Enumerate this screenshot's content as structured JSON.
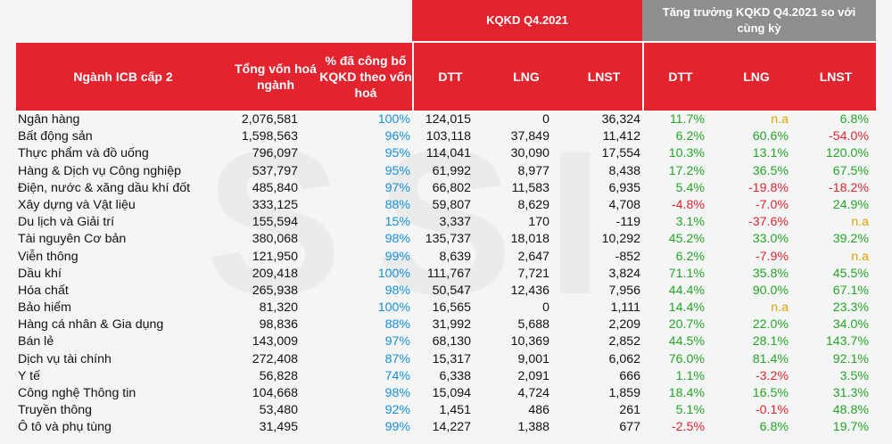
{
  "watermark": "SSI",
  "header": {
    "kqkd": "KQKD Q4.2021",
    "growth": "Tăng trưởng KQKD Q4.2021 so với cùng kỳ",
    "industry": "Ngành ICB cấp 2",
    "market_cap": "Tổng vốn hoá ngành",
    "pct_reported": "% đã công bố KQKD theo vốn hoá",
    "dtt": "DTT",
    "lng": "LNG",
    "lnst": "LNST",
    "g_dtt": "DTT",
    "g_lng": "LNG",
    "g_lnst": "LNST"
  },
  "colors": {
    "header_red": "#e3242f",
    "header_gray": "#8e8e8e",
    "positive": "#26a626",
    "negative": "#e3242f",
    "na": "#e3a300",
    "percent_blue": "#1a8fd8"
  },
  "rows": [
    {
      "name": "Ngân hàng",
      "cap": "2,076,581",
      "pct": "100%",
      "dtt": "124,015",
      "lng": "0",
      "lnst": "36,324",
      "g_dtt": "11.7%",
      "g_lng": "n.a",
      "g_lnst": "6.8%"
    },
    {
      "name": "Bất động sản",
      "cap": "1,598,563",
      "pct": "96%",
      "dtt": "103,118",
      "lng": "37,849",
      "lnst": "11,412",
      "g_dtt": "6.2%",
      "g_lng": "60.6%",
      "g_lnst": "-54.0%"
    },
    {
      "name": "Thực phẩm và đồ uống",
      "cap": "796,097",
      "pct": "95%",
      "dtt": "114,041",
      "lng": "30,090",
      "lnst": "17,554",
      "g_dtt": "10.3%",
      "g_lng": "13.1%",
      "g_lnst": "120.0%"
    },
    {
      "name": "Hàng & Dịch vụ Công nghiệp",
      "cap": "537,797",
      "pct": "95%",
      "dtt": "61,992",
      "lng": "8,977",
      "lnst": "8,438",
      "g_dtt": "17.2%",
      "g_lng": "36.5%",
      "g_lnst": "67.5%"
    },
    {
      "name": "Điện, nước & xăng dầu khí đốt",
      "cap": "485,840",
      "pct": "97%",
      "dtt": "66,802",
      "lng": "11,583",
      "lnst": "6,935",
      "g_dtt": "5.4%",
      "g_lng": "-19.8%",
      "g_lnst": "-18.2%"
    },
    {
      "name": "Xây dựng và Vật liệu",
      "cap": "333,125",
      "pct": "88%",
      "dtt": "59,807",
      "lng": "8,629",
      "lnst": "4,708",
      "g_dtt": "-4.8%",
      "g_lng": "-7.0%",
      "g_lnst": "24.9%"
    },
    {
      "name": "Du lịch và Giải trí",
      "cap": "155,594",
      "pct": "15%",
      "dtt": "3,337",
      "lng": "170",
      "lnst": "-119",
      "g_dtt": "3.1%",
      "g_lng": "-37.6%",
      "g_lnst": "n.a"
    },
    {
      "name": "Tài nguyên Cơ bản",
      "cap": "380,068",
      "pct": "98%",
      "dtt": "135,737",
      "lng": "18,018",
      "lnst": "10,292",
      "g_dtt": "45.2%",
      "g_lng": "33.0%",
      "g_lnst": "39.2%"
    },
    {
      "name": "Viễn thông",
      "cap": "121,950",
      "pct": "99%",
      "dtt": "8,639",
      "lng": "2,647",
      "lnst": "-852",
      "g_dtt": "6.2%",
      "g_lng": "-7.9%",
      "g_lnst": "n.a"
    },
    {
      "name": "Dầu khí",
      "cap": "209,418",
      "pct": "100%",
      "dtt": "111,767",
      "lng": "7,721",
      "lnst": "3,824",
      "g_dtt": "71.1%",
      "g_lng": "35.8%",
      "g_lnst": "45.5%"
    },
    {
      "name": "Hóa chất",
      "cap": "265,938",
      "pct": "98%",
      "dtt": "50,547",
      "lng": "12,436",
      "lnst": "7,956",
      "g_dtt": "44.4%",
      "g_lng": "90.0%",
      "g_lnst": "67.1%"
    },
    {
      "name": "Bảo hiểm",
      "cap": "81,320",
      "pct": "100%",
      "dtt": "16,565",
      "lng": "0",
      "lnst": "1,111",
      "g_dtt": "14.4%",
      "g_lng": "n.a",
      "g_lnst": "23.3%"
    },
    {
      "name": "Hàng cá nhân & Gia dụng",
      "cap": "98,836",
      "pct": "88%",
      "dtt": "31,992",
      "lng": "5,688",
      "lnst": "2,209",
      "g_dtt": "20.7%",
      "g_lng": "22.0%",
      "g_lnst": "34.0%"
    },
    {
      "name": "Bán lẻ",
      "cap": "143,009",
      "pct": "97%",
      "dtt": "68,130",
      "lng": "10,369",
      "lnst": "2,852",
      "g_dtt": "44.5%",
      "g_lng": "28.1%",
      "g_lnst": "143.7%"
    },
    {
      "name": "Dịch vụ tài chính",
      "cap": "272,408",
      "pct": "87%",
      "dtt": "15,317",
      "lng": "9,001",
      "lnst": "6,062",
      "g_dtt": "76.0%",
      "g_lng": "81.4%",
      "g_lnst": "92.1%"
    },
    {
      "name": "Y tế",
      "cap": "56,828",
      "pct": "74%",
      "dtt": "6,338",
      "lng": "2,091",
      "lnst": "666",
      "g_dtt": "1.1%",
      "g_lng": "-3.2%",
      "g_lnst": "3.5%"
    },
    {
      "name": "Công nghệ Thông tin",
      "cap": "104,668",
      "pct": "98%",
      "dtt": "15,094",
      "lng": "4,724",
      "lnst": "1,859",
      "g_dtt": "18.4%",
      "g_lng": "16.5%",
      "g_lnst": "31.3%"
    },
    {
      "name": "Truyền thông",
      "cap": "53,480",
      "pct": "92%",
      "dtt": "1,451",
      "lng": "486",
      "lnst": "261",
      "g_dtt": "5.1%",
      "g_lng": "-0.1%",
      "g_lnst": "48.8%"
    },
    {
      "name": "Ô tô và phụ tùng",
      "cap": "31,495",
      "pct": "99%",
      "dtt": "14,227",
      "lng": "1,388",
      "lnst": "677",
      "g_dtt": "-2.5%",
      "g_lng": "6.8%",
      "g_lnst": "19.7%"
    }
  ]
}
